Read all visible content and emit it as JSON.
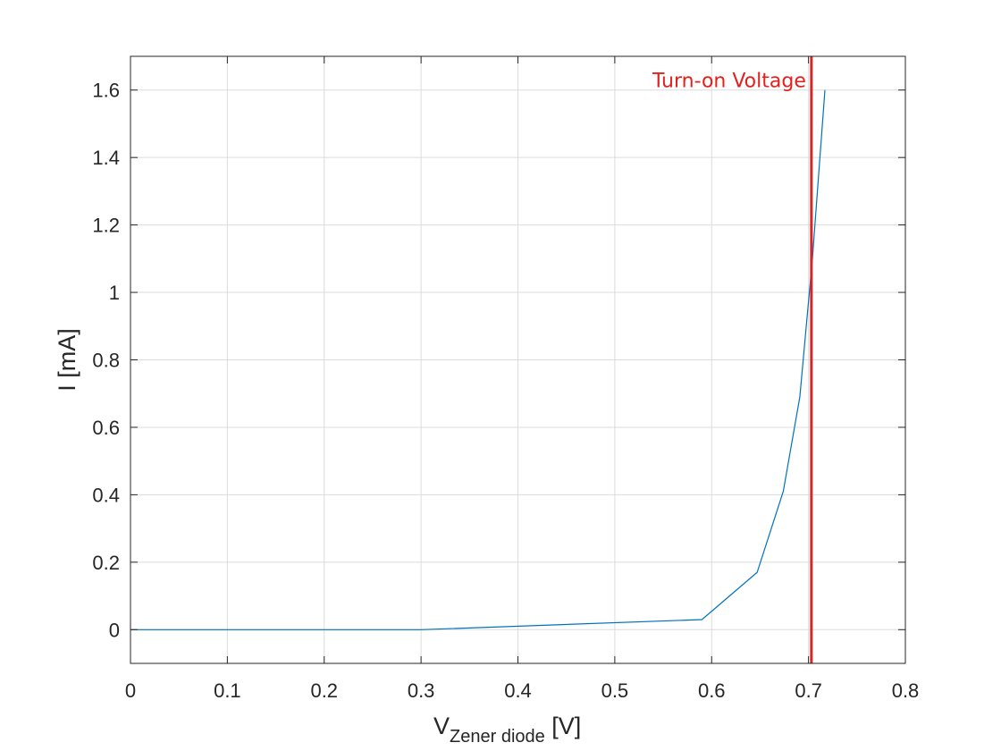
{
  "chart_data": {
    "type": "line",
    "x_ticks": [
      "0",
      "0.1",
      "0.2",
      "0.3",
      "0.4",
      "0.5",
      "0.6",
      "0.7",
      "0.8"
    ],
    "y_ticks": [
      "0",
      "0.2",
      "0.4",
      "0.6",
      "0.8",
      "1",
      "1.2",
      "1.4",
      "1.6"
    ],
    "xlim": [
      0,
      0.8
    ],
    "ylim": [
      -0.1,
      1.7
    ],
    "xlabel": {
      "main": "V",
      "subscript": "Zener diode",
      "suffix": " [V]"
    },
    "ylabel": "I [mA]",
    "grid": true,
    "series": [
      {
        "color": "#0072bd",
        "x": [
          0,
          0.3,
          0.59,
          0.647,
          0.674,
          0.691,
          0.704,
          0.717
        ],
        "y": [
          0,
          0,
          0.03,
          0.17,
          0.41,
          0.69,
          1.1,
          1.6
        ]
      }
    ],
    "vline": {
      "x": 0.703,
      "color": "#d62728"
    },
    "annotation": {
      "text": "Turn-on Voltage",
      "color": "#e3211c",
      "x": 0.703,
      "y": 1.63
    }
  }
}
